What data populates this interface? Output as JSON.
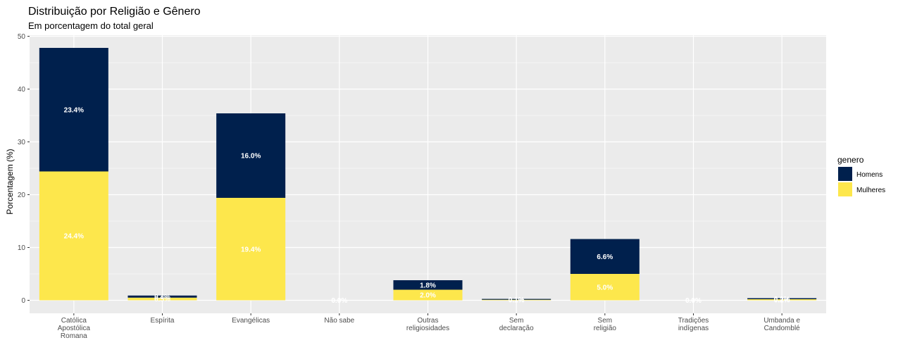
{
  "chart_data": {
    "type": "bar",
    "stacked": true,
    "title": "Distribuição por Religião e Gênero",
    "subtitle": "Em porcentagem do total geral",
    "ylabel": "Porcentagem (%)",
    "ylim": [
      0,
      50
    ],
    "yticks": [
      0,
      10,
      20,
      30,
      40,
      50
    ],
    "categories": [
      [
        "Católica",
        "Apostólica",
        "Romana"
      ],
      [
        "Espírita"
      ],
      [
        "Evangélicas"
      ],
      [
        "Não sabe"
      ],
      [
        "Outras",
        "religiosidades"
      ],
      [
        "Sem",
        "declaração"
      ],
      [
        "Sem",
        "religião"
      ],
      [
        "Tradições",
        "indígenas"
      ],
      [
        "Umbanda e",
        "Candomblé"
      ]
    ],
    "series": [
      {
        "name": "Mulheres",
        "color": "#FDE74C",
        "values": [
          24.4,
          0.5,
          19.4,
          0.0,
          2.0,
          0.1,
          5.0,
          0.0,
          0.2
        ],
        "labels": [
          "24.4%",
          "0.5%",
          "19.4%",
          "0.0%",
          "2.0%",
          "0.1%",
          "5.0%",
          "0.0%",
          "0.2%"
        ]
      },
      {
        "name": "Homens",
        "color": "#00204D",
        "values": [
          23.4,
          0.4,
          16.0,
          0.0,
          1.8,
          0.1,
          6.6,
          0.0,
          0.2
        ],
        "labels": [
          "23.4%",
          "0.4%",
          "16.0%",
          "0.0%",
          "1.8%",
          "0.1%",
          "6.6%",
          "0.0%",
          "0.2%"
        ]
      }
    ],
    "legend": {
      "title": "genero",
      "position": "right",
      "entries": [
        {
          "name": "Homens",
          "color": "#00204D"
        },
        {
          "name": "Mulheres",
          "color": "#FDE74C"
        }
      ]
    },
    "grid": true,
    "panel_background": "#EBEBEB"
  }
}
